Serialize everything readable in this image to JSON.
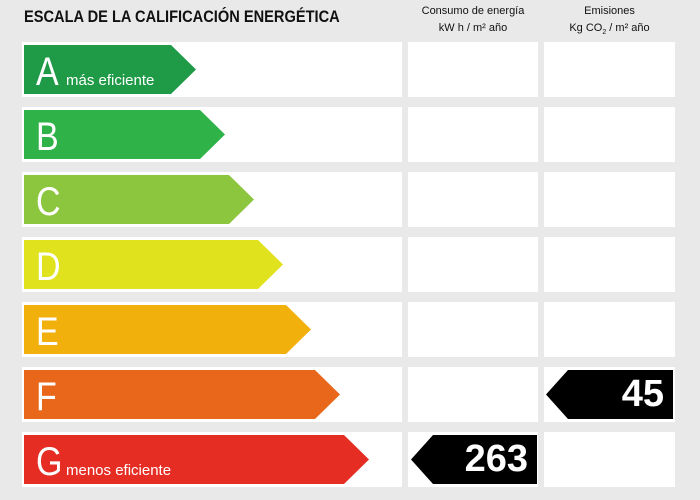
{
  "title": "ESCALA DE LA CALIFICACIÓN ENERGÉTICA",
  "columns": {
    "energy": {
      "line1": "Consumo de energía",
      "line2": "kW h / m² año"
    },
    "emissions": {
      "line1": "Emisiones",
      "line2_pre": "Kg CO",
      "line2_sub": "2",
      "line2_post": " / m² año"
    }
  },
  "ratings": [
    {
      "letter": "A",
      "label": "más eficiente",
      "color": "#1f9a47"
    },
    {
      "letter": "B",
      "label": "",
      "color": "#2fb248"
    },
    {
      "letter": "C",
      "label": "",
      "color": "#8cc53e"
    },
    {
      "letter": "D",
      "label": "",
      "color": "#dfe21d"
    },
    {
      "letter": "E",
      "label": "",
      "color": "#f2b00d"
    },
    {
      "letter": "F",
      "label": "",
      "color": "#e8671b"
    },
    {
      "letter": "G",
      "label": "menos eficiente",
      "color": "#e52d24"
    }
  ],
  "values": {
    "energy": {
      "rating": "G",
      "value": "263"
    },
    "emissions": {
      "rating": "F",
      "value": "45"
    }
  }
}
